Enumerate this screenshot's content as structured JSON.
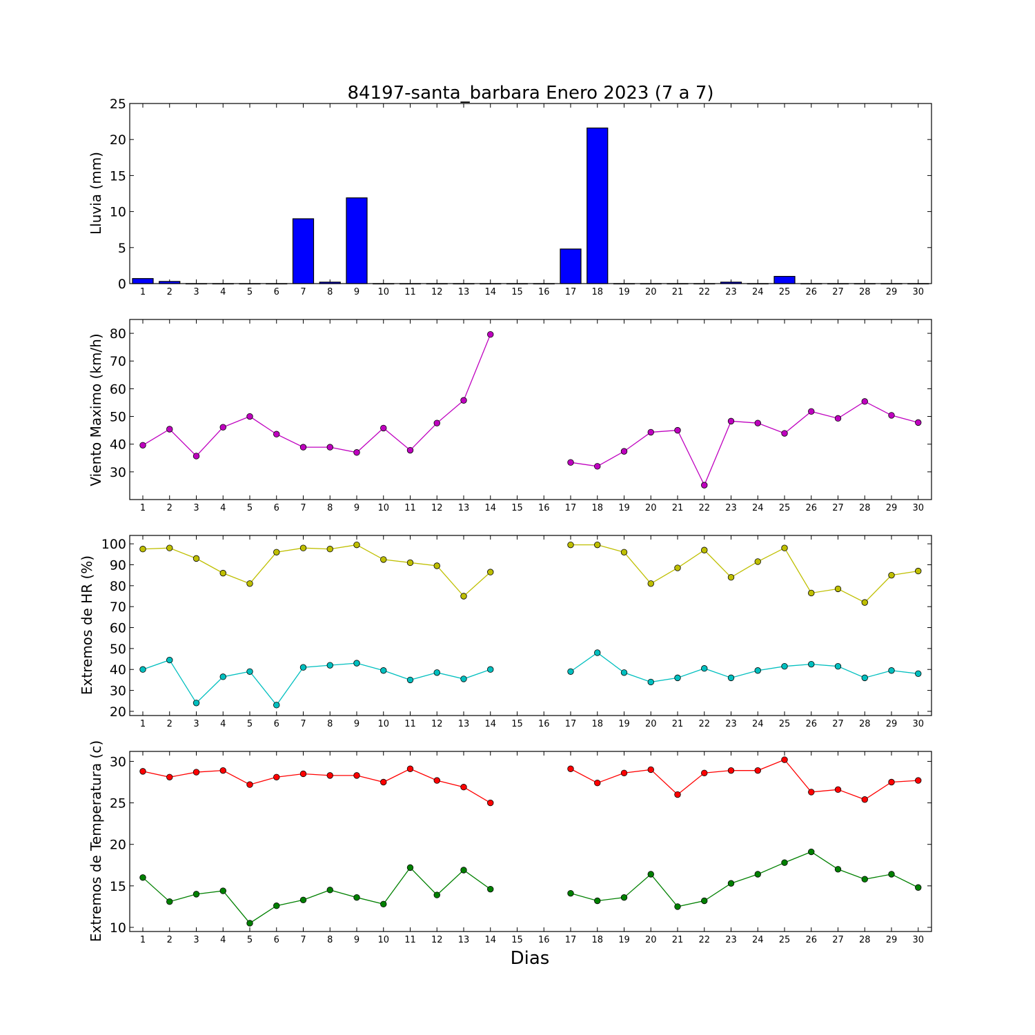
{
  "chart_data": [
    {
      "type": "bar",
      "title": "84197-santa_barbara Enero 2023  (7 a 7)",
      "xlabel": "",
      "ylabel": "Lluvia (mm)",
      "x": [
        1,
        2,
        3,
        4,
        5,
        6,
        7,
        8,
        9,
        10,
        11,
        12,
        13,
        14,
        15,
        16,
        17,
        18,
        19,
        20,
        21,
        22,
        23,
        24,
        25,
        26,
        27,
        28,
        29,
        30
      ],
      "ylim": [
        0,
        25
      ],
      "yticks": [
        0,
        5,
        10,
        15,
        20,
        25
      ],
      "series": [
        {
          "color": "#0000ff",
          "values": [
            0.7,
            0.3,
            0,
            0,
            0,
            0,
            9.0,
            0.2,
            11.9,
            0,
            0,
            0,
            0,
            0,
            0,
            0,
            4.8,
            21.6,
            0,
            0,
            0,
            0,
            0.2,
            0,
            1.0,
            0,
            0,
            0,
            0,
            0
          ]
        }
      ]
    },
    {
      "type": "line",
      "ylabel": "Viento Maximo (km/h)",
      "x": [
        1,
        2,
        3,
        4,
        5,
        6,
        7,
        8,
        9,
        10,
        11,
        12,
        13,
        14,
        15,
        16,
        17,
        18,
        19,
        20,
        21,
        22,
        23,
        24,
        25,
        26,
        27,
        28,
        29,
        30
      ],
      "ylim": [
        20,
        85
      ],
      "yticks": [
        30,
        40,
        50,
        60,
        70,
        80
      ],
      "series": [
        {
          "color": "#bf00bf",
          "values": [
            39.6,
            45.4,
            35.7,
            46.1,
            50.0,
            43.6,
            38.9,
            38.9,
            37.0,
            45.8,
            37.8,
            47.6,
            55.8,
            79.6,
            null,
            null,
            33.4,
            32.0,
            37.4,
            44.3,
            45.0,
            25.2,
            48.3,
            47.6,
            43.9,
            51.8,
            49.3,
            55.4,
            50.4,
            47.8
          ]
        }
      ]
    },
    {
      "type": "line",
      "ylabel": "Extremos de HR (%)",
      "x": [
        1,
        2,
        3,
        4,
        5,
        6,
        7,
        8,
        9,
        10,
        11,
        12,
        13,
        14,
        15,
        16,
        17,
        18,
        19,
        20,
        21,
        22,
        23,
        24,
        25,
        26,
        27,
        28,
        29,
        30
      ],
      "ylim": [
        18,
        104
      ],
      "yticks": [
        20,
        30,
        40,
        50,
        60,
        70,
        80,
        90,
        100
      ],
      "series": [
        {
          "color": "#bfbf00",
          "values": [
            97.5,
            98.0,
            93.0,
            86.0,
            81.0,
            96.0,
            98.0,
            97.5,
            99.5,
            92.5,
            91.0,
            89.5,
            75.0,
            86.5,
            null,
            null,
            99.5,
            99.5,
            96.0,
            81.0,
            88.5,
            97.0,
            84.0,
            91.5,
            98.0,
            76.5,
            78.5,
            72.0,
            85.0,
            87.0
          ]
        },
        {
          "color": "#00bfbf",
          "values": [
            40.0,
            44.5,
            24.0,
            36.5,
            39.0,
            23.0,
            41.0,
            42.0,
            43.0,
            39.5,
            35.0,
            38.5,
            35.5,
            40.0,
            null,
            null,
            39.0,
            48.0,
            38.5,
            34.0,
            36.0,
            40.5,
            36.0,
            39.5,
            41.5,
            42.5,
            41.5,
            36.0,
            39.5,
            38.0
          ]
        }
      ]
    },
    {
      "type": "line",
      "ylabel": "Extremos de Temperatura (c)",
      "xlabel": "Dias",
      "x": [
        1,
        2,
        3,
        4,
        5,
        6,
        7,
        8,
        9,
        10,
        11,
        12,
        13,
        14,
        15,
        16,
        17,
        18,
        19,
        20,
        21,
        22,
        23,
        24,
        25,
        26,
        27,
        28,
        29,
        30
      ],
      "ylim": [
        9.5,
        31.2
      ],
      "yticks": [
        10,
        15,
        20,
        25,
        30
      ],
      "series": [
        {
          "color": "#ff0000",
          "values": [
            28.8,
            28.1,
            28.7,
            28.9,
            27.2,
            28.1,
            28.5,
            28.3,
            28.3,
            27.5,
            29.1,
            27.7,
            26.9,
            25.0,
            null,
            null,
            29.1,
            27.4,
            28.6,
            29.0,
            26.0,
            28.6,
            28.9,
            28.9,
            30.2,
            26.3,
            26.6,
            25.4,
            27.5,
            27.7
          ]
        },
        {
          "color": "#008000",
          "values": [
            16.0,
            13.1,
            14.0,
            14.4,
            10.5,
            12.6,
            13.3,
            14.5,
            13.6,
            12.8,
            17.2,
            13.9,
            16.9,
            14.6,
            null,
            null,
            14.1,
            13.2,
            13.6,
            16.4,
            12.5,
            13.2,
            15.3,
            16.4,
            17.8,
            19.1,
            17.0,
            15.8,
            16.4,
            14.8
          ]
        }
      ]
    }
  ]
}
